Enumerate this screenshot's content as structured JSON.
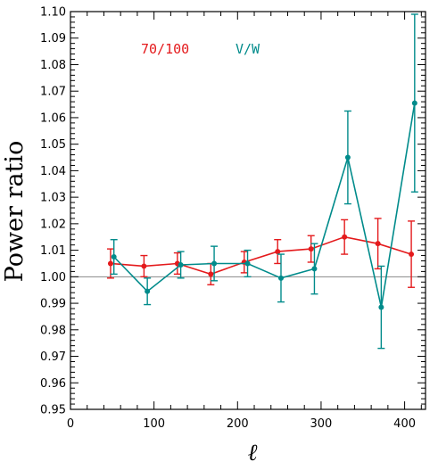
{
  "chart_data": {
    "type": "line",
    "ylabel": "Power ratio",
    "xlabel": "ℓ",
    "xlim": [
      0,
      425
    ],
    "ylim": [
      0.95,
      1.1
    ],
    "x_ticks": [
      0,
      100,
      200,
      300,
      400
    ],
    "y_ticks": [
      0.95,
      0.96,
      0.97,
      0.98,
      0.99,
      1.0,
      1.01,
      1.02,
      1.03,
      1.04,
      1.05,
      1.06,
      1.07,
      1.08,
      1.09,
      1.1
    ],
    "reference_line": 1.0,
    "grid": false,
    "legend_placement": "top-left",
    "series": [
      {
        "name": "70/100",
        "color": "#e41a1c",
        "points": [
          {
            "x": 48,
            "y": 1.005,
            "err": 0.0055
          },
          {
            "x": 88,
            "y": 1.004,
            "err": 0.004
          },
          {
            "x": 128,
            "y": 1.005,
            "err": 0.004
          },
          {
            "x": 168,
            "y": 1.001,
            "err": 0.004
          },
          {
            "x": 208,
            "y": 1.0055,
            "err": 0.004
          },
          {
            "x": 248,
            "y": 1.0095,
            "err": 0.0045
          },
          {
            "x": 288,
            "y": 1.0105,
            "err": 0.005
          },
          {
            "x": 328,
            "y": 1.015,
            "err": 0.0065
          },
          {
            "x": 368,
            "y": 1.0125,
            "err": 0.0095
          },
          {
            "x": 408,
            "y": 1.0085,
            "err": 0.0125
          }
        ]
      },
      {
        "name": "V/W",
        "color": "#008b8b",
        "points": [
          {
            "x": 52,
            "y": 1.0075,
            "err": 0.0065
          },
          {
            "x": 92,
            "y": 0.9945,
            "err": 0.005
          },
          {
            "x": 132,
            "y": 1.0045,
            "err": 0.005
          },
          {
            "x": 172,
            "y": 1.005,
            "err": 0.0065
          },
          {
            "x": 212,
            "y": 1.005,
            "err": 0.005
          },
          {
            "x": 252,
            "y": 0.9995,
            "err": 0.009
          },
          {
            "x": 292,
            "y": 1.003,
            "err": 0.0095
          },
          {
            "x": 332,
            "y": 1.045,
            "err": 0.0175
          },
          {
            "x": 372,
            "y": 0.9885,
            "err": 0.0155
          },
          {
            "x": 412,
            "y": 1.0655,
            "err": 0.0335
          }
        ]
      }
    ]
  }
}
